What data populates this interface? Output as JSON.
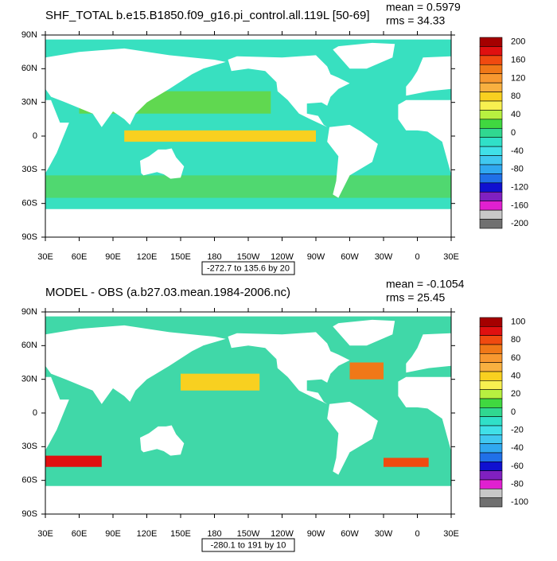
{
  "panels": [
    {
      "title": "SHF_TOTAL b.e15.B1850.f09_g16.pi_control.all.119L [50-69]",
      "mean": "mean = 0.5979",
      "rms": "rms = 34.33",
      "range_label": "-272.7 to 135.6 by 20",
      "lat_ticks": [
        "90N",
        "60N",
        "30N",
        "0",
        "30S",
        "60S",
        "90S"
      ],
      "lon_ticks": [
        "30E",
        "60E",
        "90E",
        "120E",
        "150E",
        "180",
        "150W",
        "120W",
        "90W",
        "60W",
        "30W",
        "0",
        "30E"
      ],
      "colorbar": {
        "labels": [
          200,
          160,
          120,
          80,
          40,
          0,
          -40,
          -80,
          -120,
          -160,
          -200
        ],
        "colors": [
          "#a50000",
          "#e01010",
          "#f04a10",
          "#f07818",
          "#f89830",
          "#f8b040",
          "#f8d020",
          "#f8f050",
          "#b8f040",
          "#40d840",
          "#30d890",
          "#30e0c8",
          "#40e0e8",
          "#40c8f0",
          "#30a8f0",
          "#2070e8",
          "#1010d0",
          "#8020c0",
          "#e020d0",
          "#c8c8c8",
          "#707070"
        ]
      }
    },
    {
      "title": "MODEL - OBS (a.b27.03.mean.1984-2006.nc)",
      "mean": "mean = -0.1054",
      "rms": "rms = 25.45",
      "range_label": "-280.1 to 191 by 10",
      "lat_ticks": [
        "90N",
        "60N",
        "30N",
        "0",
        "30S",
        "60S",
        "90S"
      ],
      "lon_ticks": [
        "30E",
        "60E",
        "90E",
        "120E",
        "150E",
        "180",
        "150W",
        "120W",
        "90W",
        "60W",
        "30W",
        "0",
        "30E"
      ],
      "colorbar": {
        "labels": [
          100,
          80,
          60,
          40,
          20,
          0,
          -20,
          -40,
          -60,
          -80,
          -100
        ],
        "colors": [
          "#a50000",
          "#e01010",
          "#f04a10",
          "#f07818",
          "#f89830",
          "#f8b040",
          "#f8d020",
          "#f8f050",
          "#b8f040",
          "#40d840",
          "#30d890",
          "#30e0c8",
          "#40e0e8",
          "#40c8f0",
          "#30a8f0",
          "#2070e8",
          "#1010d0",
          "#8020c0",
          "#e020d0",
          "#c8c8c8",
          "#707070"
        ]
      }
    }
  ]
}
